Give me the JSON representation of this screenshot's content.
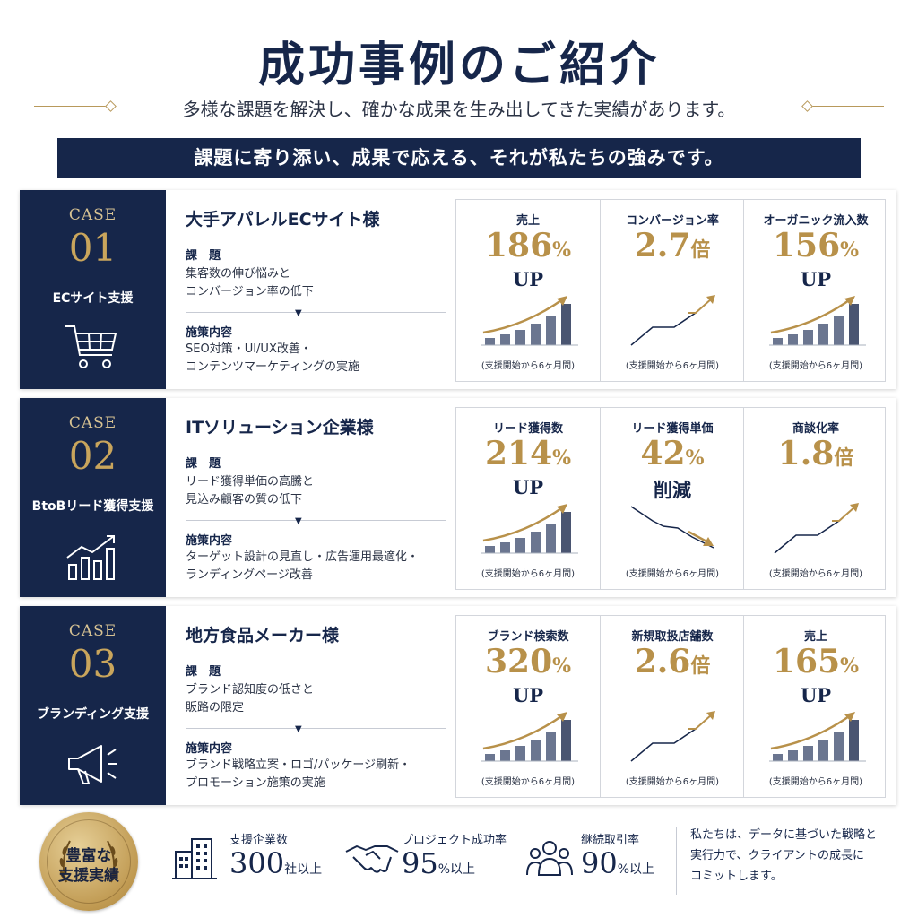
{
  "header": {
    "title": "成功事例のご紹介",
    "subtitle": "多様な課題を解決し、確かな成果を生み出してきた実績があります。",
    "banner": "課題に寄り添い、成果で応える、それが私たちの強みです。"
  },
  "cases": [
    {
      "label": "CASE",
      "number": "01",
      "category": "ECサイト支援",
      "icon": "shopping-cart-icon",
      "client": "大手アパレルECサイト様",
      "issue_label": "課　題",
      "issue_lines": [
        "集客数の伸び悩みと",
        "コンバージョン率の低下"
      ],
      "action_label": "施策内容",
      "action_lines": [
        "SEO対策・UI/UX改善・",
        "コンテンツマーケティングの実施"
      ],
      "metrics": [
        {
          "title": "売上",
          "value": "186",
          "unit": "%",
          "sub": "UP",
          "chart": "bar-up",
          "note": "(支援開始から6ヶ月間)"
        },
        {
          "title": "コンバージョン率",
          "value": "2.7",
          "unit": "倍",
          "sub": "",
          "chart": "line-up",
          "note": "(支援開始から6ヶ月間)"
        },
        {
          "title": "オーガニック流入数",
          "value": "156",
          "unit": "%",
          "sub": "UP",
          "chart": "bar-up",
          "note": "(支援開始から6ヶ月間)"
        }
      ]
    },
    {
      "label": "CASE",
      "number": "02",
      "category": "BtoBリード獲得支援",
      "icon": "growth-chart-icon",
      "client": "ITソリューション企業様",
      "issue_label": "課　題",
      "issue_lines": [
        "リード獲得単価の高騰と",
        "見込み顧客の質の低下"
      ],
      "action_label": "施策内容",
      "action_lines": [
        "ターゲット設計の見直し・広告運用最適化・",
        "ランディングページ改善"
      ],
      "metrics": [
        {
          "title": "リード獲得数",
          "value": "214",
          "unit": "%",
          "sub": "UP",
          "chart": "bar-up",
          "note": "(支援開始から6ヶ月間)"
        },
        {
          "title": "リード獲得単価",
          "value": "42",
          "unit": "%",
          "sub": "削減",
          "chart": "line-down",
          "note": "(支援開始から6ヶ月間)"
        },
        {
          "title": "商談化率",
          "value": "1.8",
          "unit": "倍",
          "sub": "",
          "chart": "line-up",
          "note": "(支援開始から6ヶ月間)"
        }
      ]
    },
    {
      "label": "CASE",
      "number": "03",
      "category": "ブランディング支援",
      "icon": "megaphone-icon",
      "client": "地方食品メーカー様",
      "issue_label": "課　題",
      "issue_lines": [
        "ブランド認知度の低さと",
        "販路の限定"
      ],
      "action_label": "施策内容",
      "action_lines": [
        "ブランド戦略立案・ロゴ/パッケージ刷新・",
        "プロモーション施策の実施"
      ],
      "metrics": [
        {
          "title": "ブランド検索数",
          "value": "320",
          "unit": "%",
          "sub": "UP",
          "chart": "bar-up",
          "note": "(支援開始から6ヶ月間)"
        },
        {
          "title": "新規取扱店舗数",
          "value": "2.6",
          "unit": "倍",
          "sub": "",
          "chart": "line-up",
          "note": "(支援開始から6ヶ月間)"
        },
        {
          "title": "売上",
          "value": "165",
          "unit": "%",
          "sub": "UP",
          "chart": "bar-up",
          "note": "(支援開始から6ヶ月間)"
        }
      ]
    }
  ],
  "footer": {
    "seal_line1": "豊富な",
    "seal_line2": "支援実績",
    "stats": [
      {
        "icon": "building-icon",
        "label": "支援企業数",
        "value": "300",
        "unit": "社以上"
      },
      {
        "icon": "handshake-icon",
        "label": "プロジェクト成功率",
        "value": "95",
        "unit": "%以上"
      },
      {
        "icon": "team-icon",
        "label": "継続取引率",
        "value": "90",
        "unit": "%以上"
      }
    ],
    "closing_lines": [
      "私たちは、データに基づいた戦略と",
      "実行力で、クライアントの成長に",
      "コミットします。"
    ]
  },
  "colors": {
    "navy": "#16264a",
    "gold": "#b8914a",
    "bar": "#6b7690"
  }
}
